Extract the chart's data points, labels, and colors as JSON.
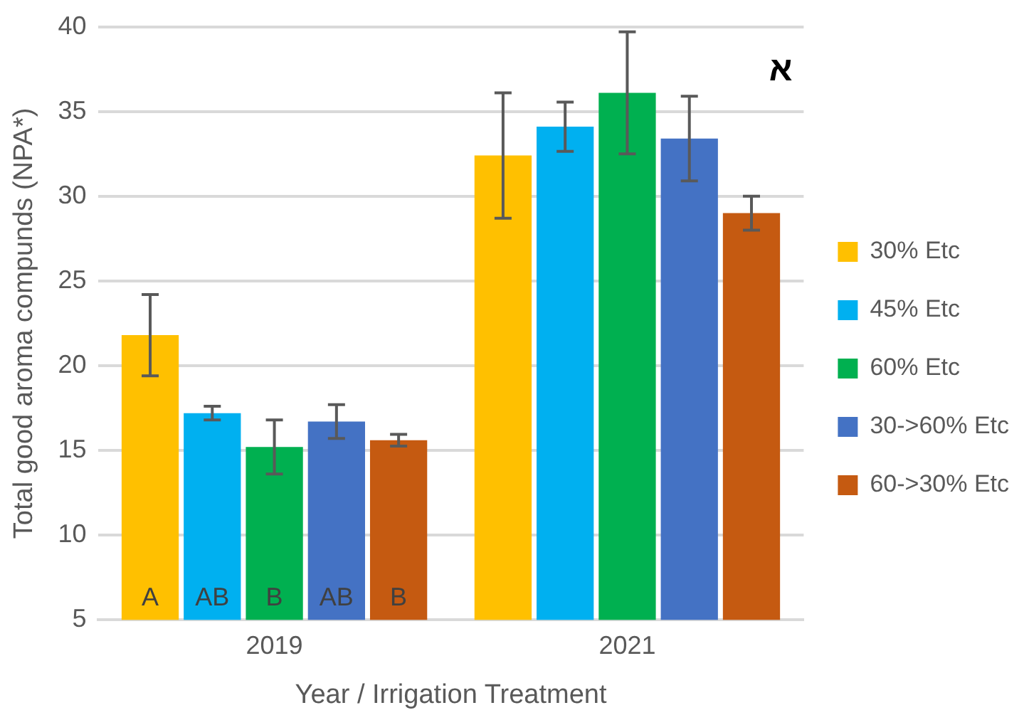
{
  "chart_data": {
    "type": "bar",
    "ylabel": "Total good aroma compunds (NPA*)",
    "xlabel": "Year / Irrigation Treatment",
    "categories": [
      "2019",
      "2021"
    ],
    "series": [
      {
        "name": "30% Etc",
        "color": "#ffc000",
        "values": [
          21.8,
          32.4
        ],
        "errors": [
          2.4,
          3.7
        ],
        "value_labels": [
          "A",
          null
        ]
      },
      {
        "name": "45% Etc",
        "color": "#00b0f0",
        "values": [
          17.2,
          34.1
        ],
        "errors": [
          0.4,
          1.45
        ],
        "value_labels": [
          "AB",
          null
        ]
      },
      {
        "name": "60% Etc",
        "color": "#00b050",
        "values": [
          15.2,
          36.1
        ],
        "errors": [
          1.6,
          3.6
        ],
        "value_labels": [
          "B",
          null
        ]
      },
      {
        "name": "30->60% Etc",
        "color": "#4472c4",
        "values": [
          16.7,
          33.4
        ],
        "errors": [
          1.0,
          2.5
        ],
        "value_labels": [
          "AB",
          null
        ]
      },
      {
        "name": "60->30% Etc",
        "color": "#c55a11",
        "values": [
          15.6,
          29.0
        ],
        "errors": [
          0.35,
          1.0
        ],
        "value_labels": [
          "B",
          null
        ]
      }
    ],
    "annotations": [
      "א"
    ],
    "ylim": [
      5,
      40
    ],
    "yticks": [
      5,
      10,
      15,
      20,
      25,
      30,
      35,
      40
    ],
    "grid": "y",
    "legend": "right"
  }
}
